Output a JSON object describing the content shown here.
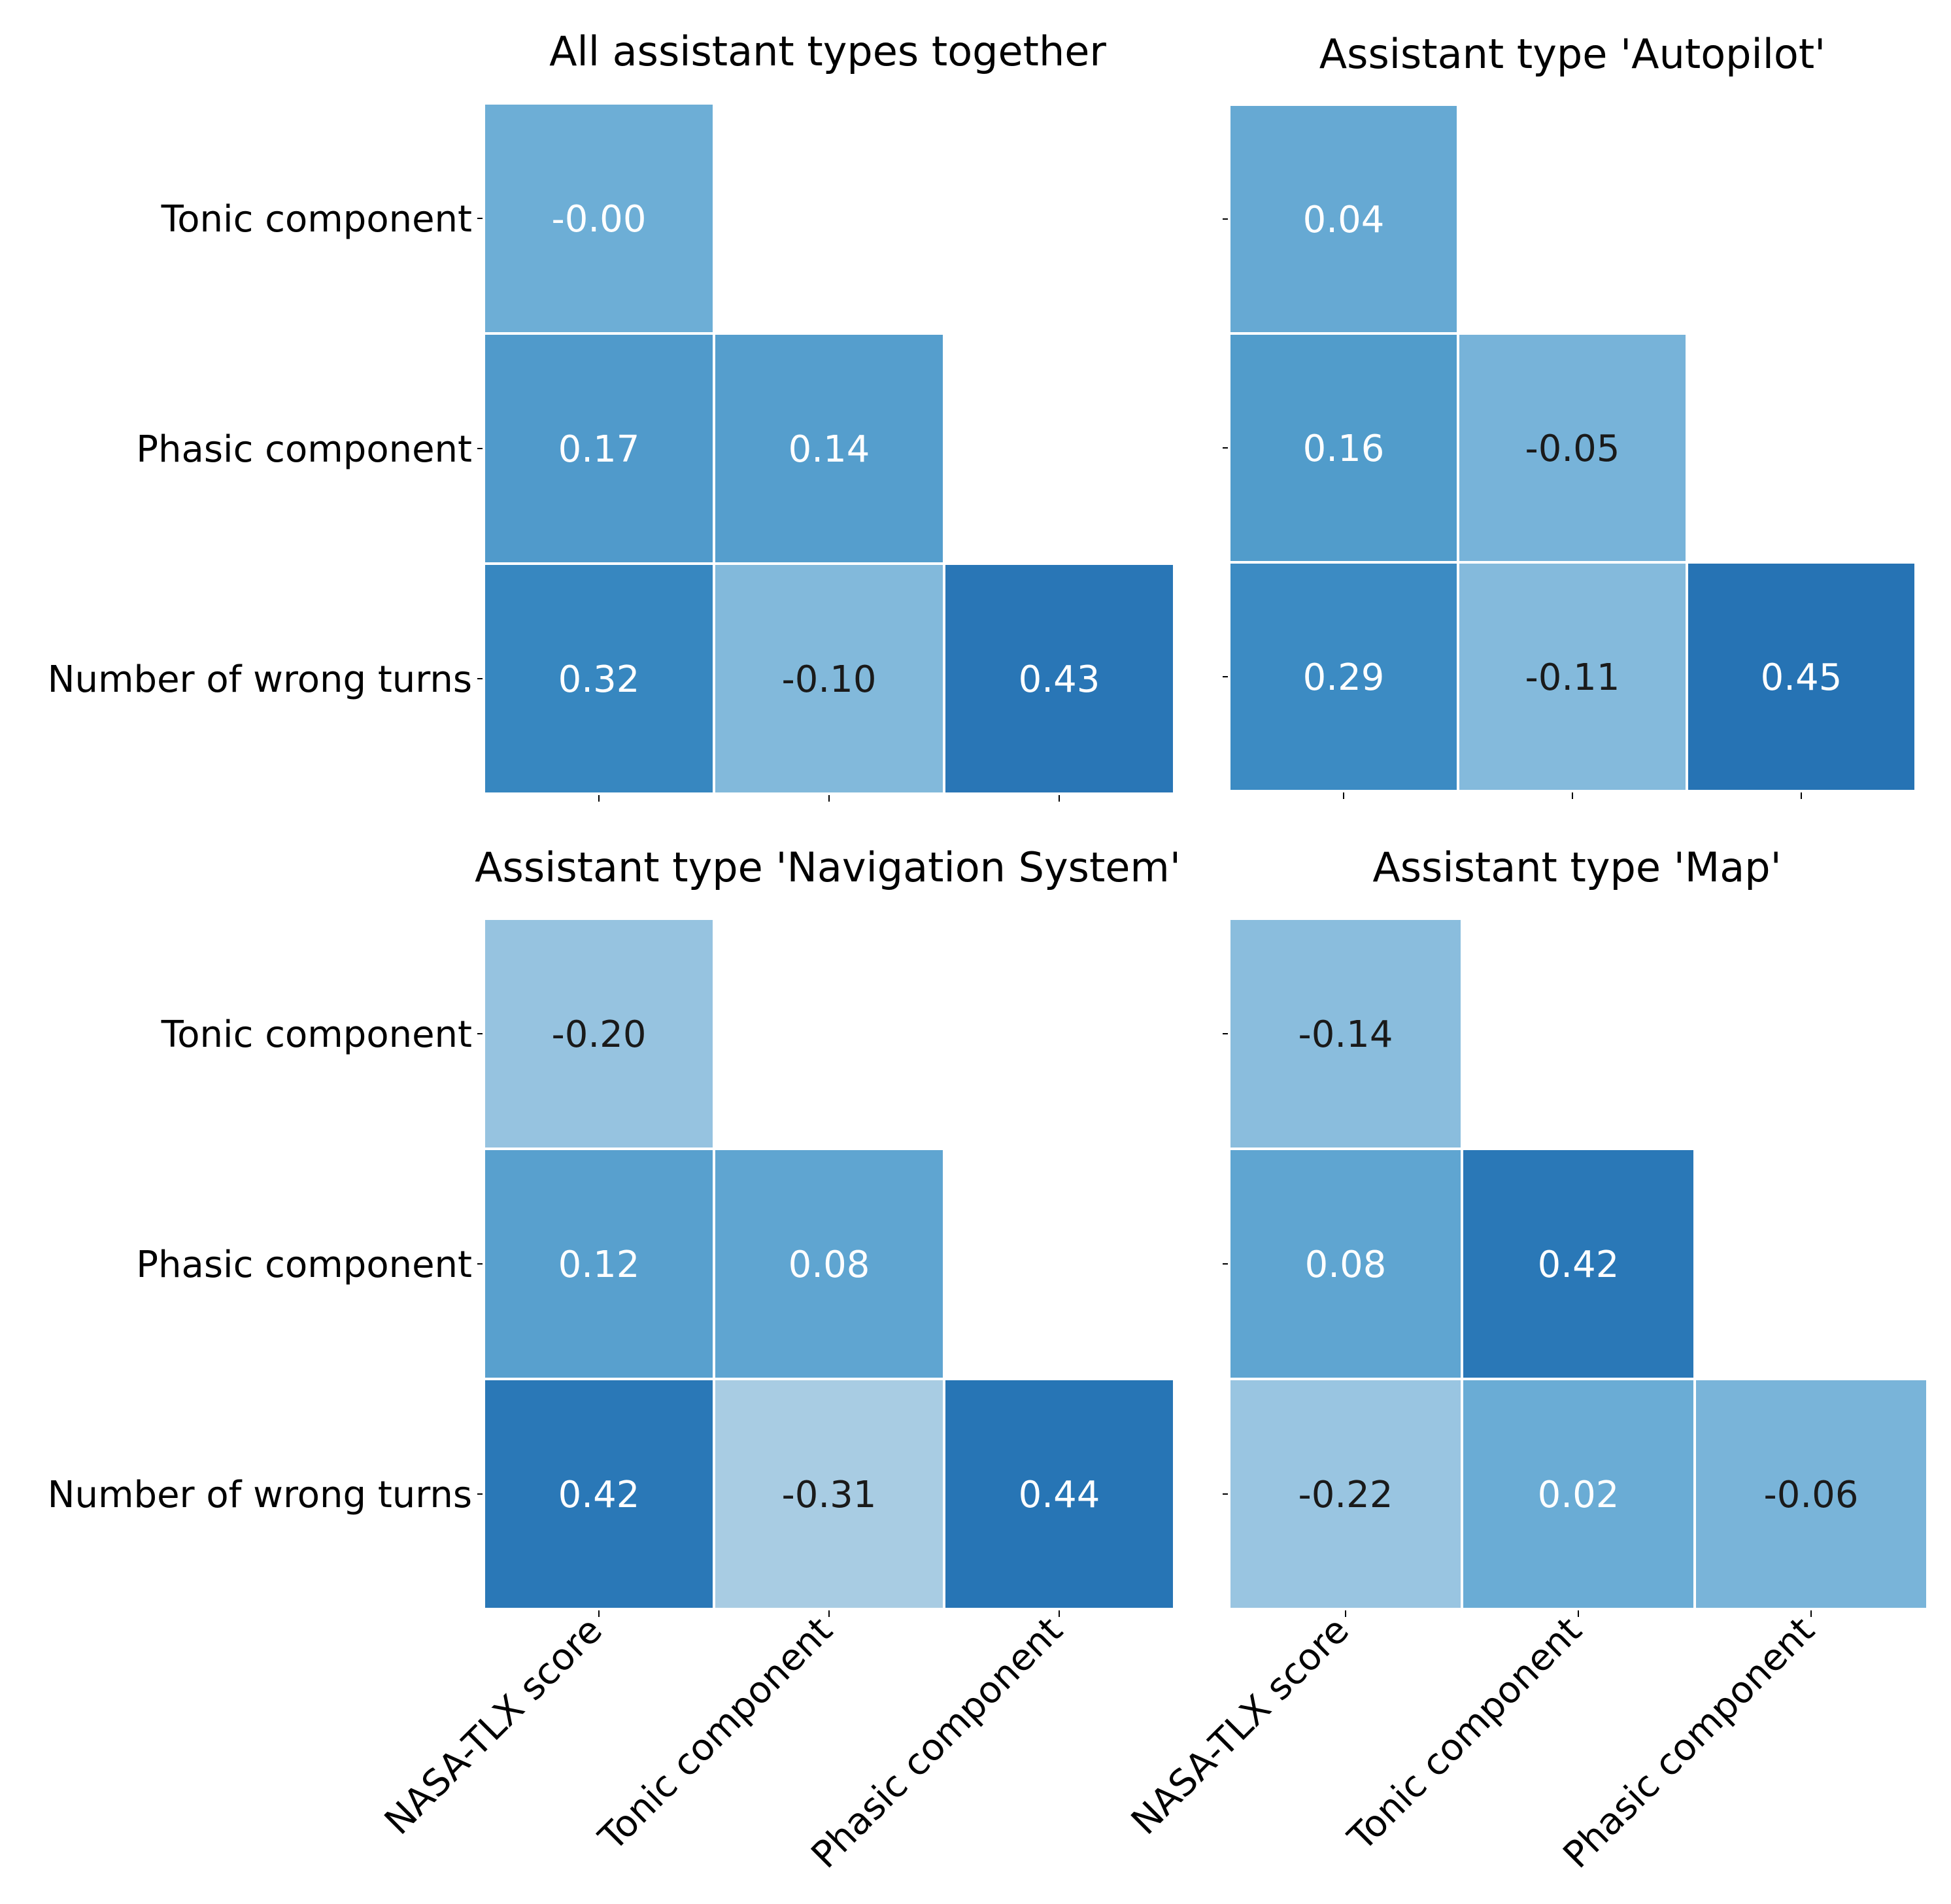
{
  "chart_data": [
    {
      "type": "heatmap",
      "title": "All assistant types together",
      "rows": [
        "Tonic component",
        "Phasic component",
        "Number of wrong turns"
      ],
      "columns": [
        "NASA-TLX score",
        "Tonic component",
        "Phasic component"
      ],
      "show_row_labels": true,
      "show_column_labels": false,
      "values": [
        [
          -0.0,
          null,
          null
        ],
        [
          0.17,
          0.14,
          null
        ],
        [
          0.32,
          -0.1,
          0.43
        ]
      ],
      "labels": [
        [
          "-0.00",
          null,
          null
        ],
        [
          "0.17",
          "0.14",
          null
        ],
        [
          "0.32",
          "-0.10",
          "0.43"
        ]
      ]
    },
    {
      "type": "heatmap",
      "title": "Assistant type 'Autopilot'",
      "rows": [
        "Tonic component",
        "Phasic component",
        "Number of wrong turns"
      ],
      "columns": [
        "NASA-TLX score",
        "Tonic component",
        "Phasic component"
      ],
      "show_row_labels": false,
      "show_column_labels": false,
      "values": [
        [
          0.04,
          null,
          null
        ],
        [
          0.16,
          -0.05,
          null
        ],
        [
          0.29,
          -0.11,
          0.45
        ]
      ],
      "labels": [
        [
          "0.04",
          null,
          null
        ],
        [
          "0.16",
          "-0.05",
          null
        ],
        [
          "0.29",
          "-0.11",
          "0.45"
        ]
      ]
    },
    {
      "type": "heatmap",
      "title": "Assistant type 'Navigation System'",
      "rows": [
        "Tonic component",
        "Phasic component",
        "Number of wrong turns"
      ],
      "columns": [
        "NASA-TLX score",
        "Tonic component",
        "Phasic component"
      ],
      "show_row_labels": true,
      "show_column_labels": true,
      "values": [
        [
          -0.2,
          null,
          null
        ],
        [
          0.12,
          0.08,
          null
        ],
        [
          0.42,
          -0.31,
          0.44
        ]
      ],
      "labels": [
        [
          "-0.20",
          null,
          null
        ],
        [
          "0.12",
          "0.08",
          null
        ],
        [
          "0.42",
          "-0.31",
          "0.44"
        ]
      ]
    },
    {
      "type": "heatmap",
      "title": "Assistant type 'Map'",
      "rows": [
        "Tonic component",
        "Phasic component",
        "Number of wrong turns"
      ],
      "columns": [
        "NASA-TLX score",
        "Tonic component",
        "Phasic component"
      ],
      "show_row_labels": false,
      "show_column_labels": true,
      "values": [
        [
          -0.14,
          null,
          null
        ],
        [
          0.08,
          0.42,
          null
        ],
        [
          -0.22,
          0.02,
          -0.06
        ]
      ],
      "labels": [
        [
          "-0.14",
          null,
          null
        ],
        [
          "0.08",
          "0.42",
          null
        ],
        [
          "-0.22",
          "0.02",
          "-0.06"
        ]
      ]
    }
  ]
}
